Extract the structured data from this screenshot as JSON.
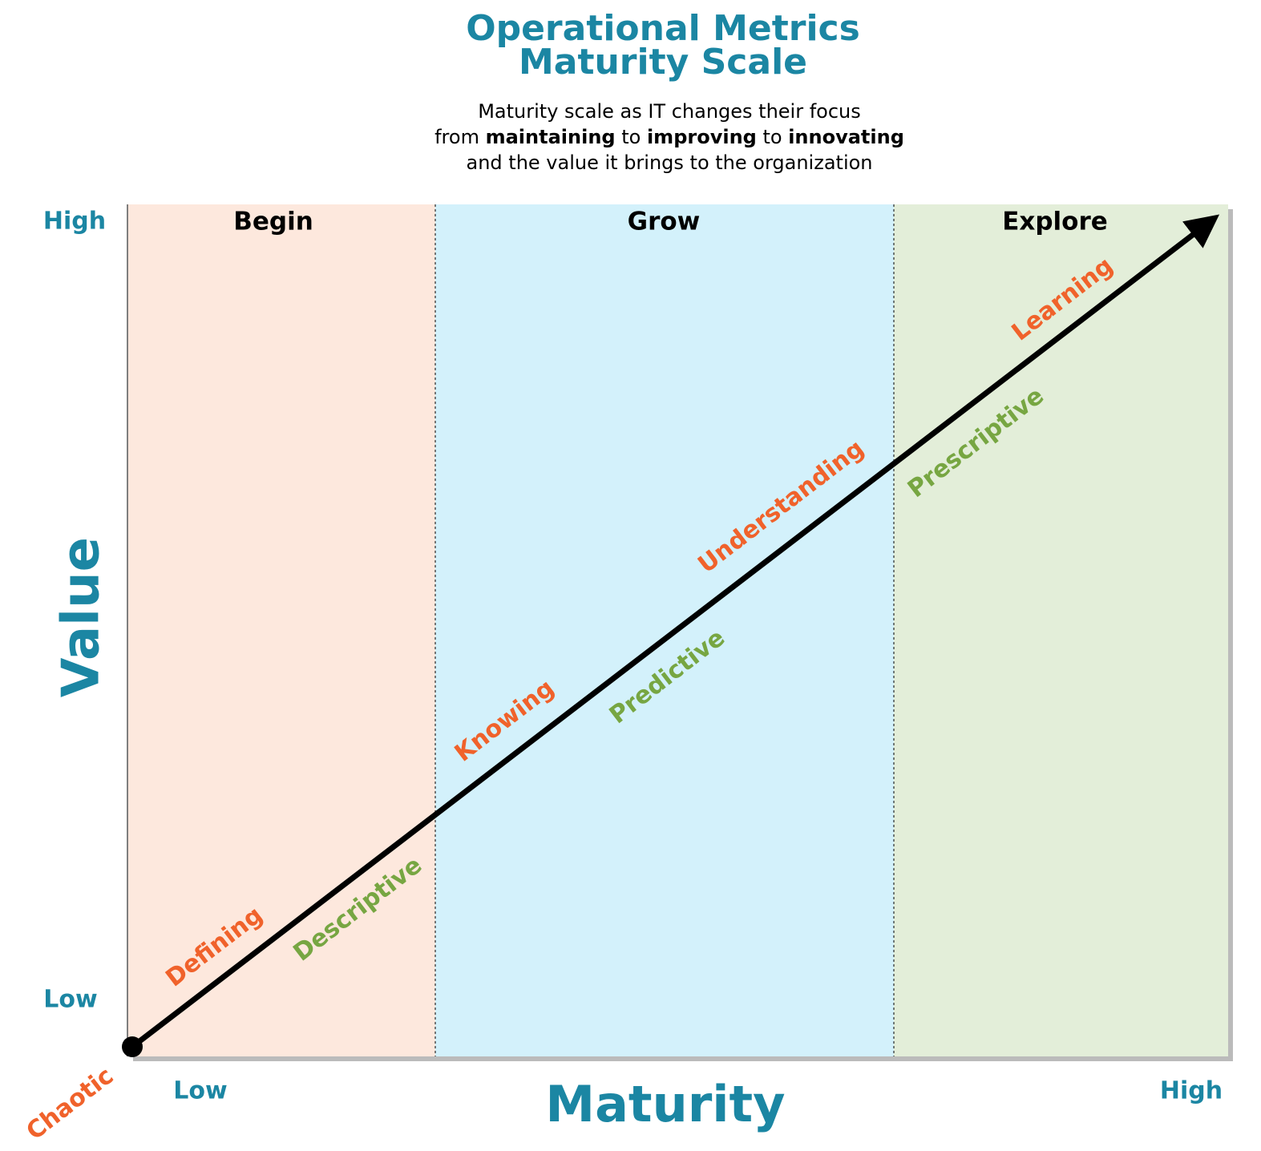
{
  "title": {
    "line1": "Operational Metrics",
    "line2": "Maturity Scale"
  },
  "subtitle": {
    "line1": "Maturity scale as IT changes their focus",
    "line2": [
      "from ",
      "maintaining",
      " to ",
      "improving",
      " to ",
      "innovating"
    ],
    "line3": "and the value it brings to the organization"
  },
  "y_axis": {
    "label": "Value",
    "high": "High",
    "low": "Low"
  },
  "x_axis": {
    "label": "Maturity",
    "low": "Low",
    "high": "High"
  },
  "start": "Chaotic",
  "phases": [
    "Begin",
    "Grow",
    "Explore"
  ],
  "stages": {
    "orange": [
      "Defining",
      "Knowing",
      "Understanding",
      "Learning"
    ],
    "green": [
      "Descriptive",
      "Predictive",
      "Prescriptive"
    ]
  }
}
